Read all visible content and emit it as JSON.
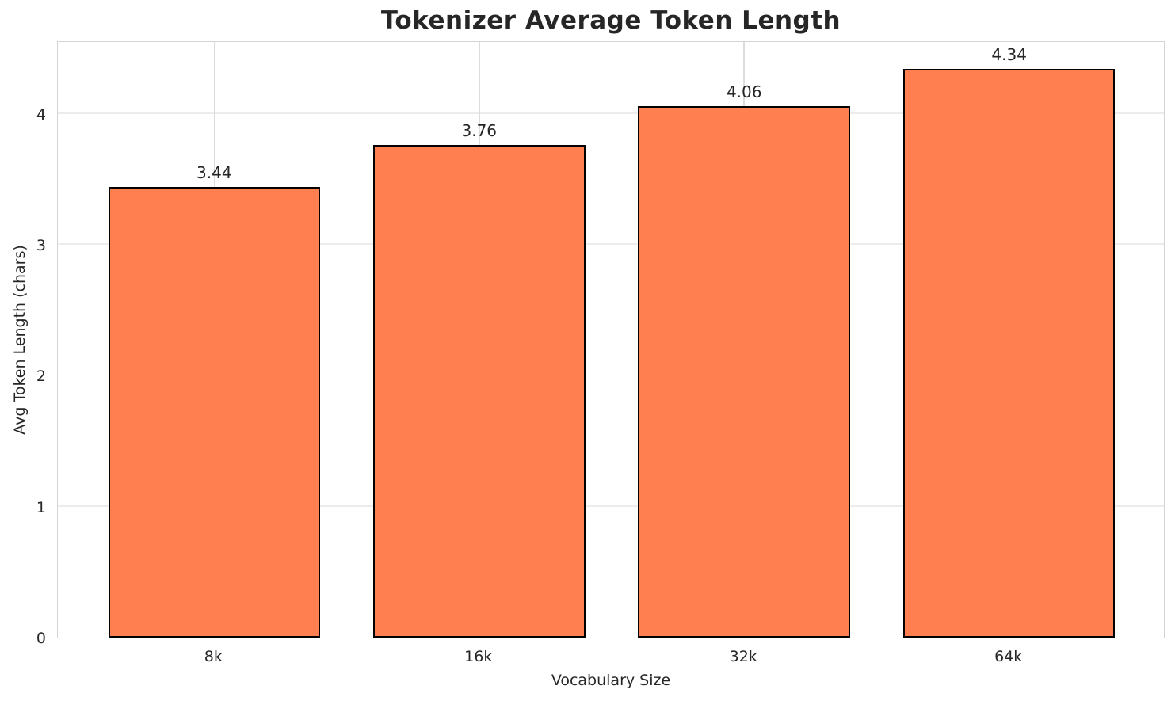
{
  "chart_data": {
    "type": "bar",
    "title": "Tokenizer Average Token Length",
    "xlabel": "Vocabulary Size",
    "ylabel": "Avg Token Length (chars)",
    "categories": [
      "8k",
      "16k",
      "32k",
      "64k"
    ],
    "values": [
      3.44,
      3.76,
      4.06,
      4.34
    ],
    "value_labels": [
      "3.44",
      "3.76",
      "4.06",
      "4.34"
    ],
    "yticks": [
      0,
      1,
      2,
      3,
      4
    ],
    "ylim": [
      0,
      4.56
    ],
    "grid": "on",
    "legend": "none",
    "bar_color": "#FF7F50",
    "bar_edge_color": "#000000",
    "grid_color_h": "#ececec",
    "grid_color_v": "#dcdcdc",
    "spine_color": "#d5d5d5",
    "text_color": "#262626",
    "background_color": "#ffffff"
  }
}
